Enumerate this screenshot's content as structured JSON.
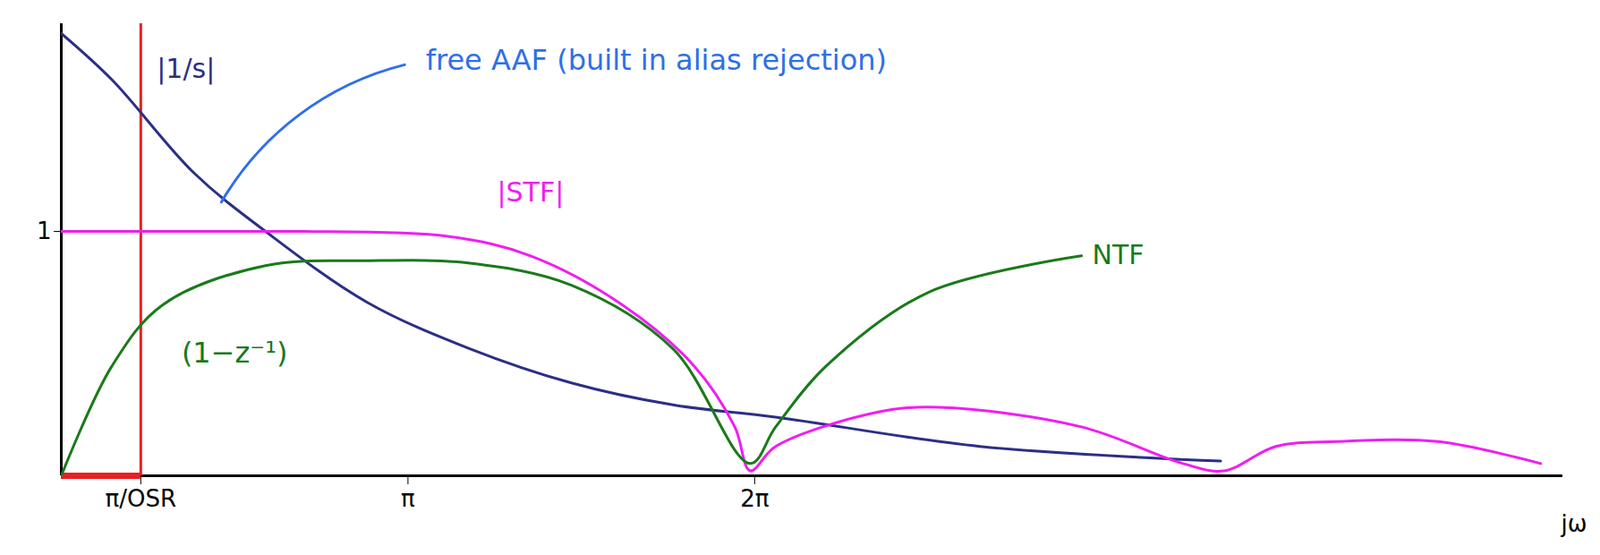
{
  "chart_data": {
    "type": "line",
    "xlabel": "jω",
    "xlim": [
      0,
      13.6
    ],
    "ylim": [
      0,
      1.85
    ],
    "xticks": [
      {
        "value": 0.72,
        "label": "π/OSR"
      },
      {
        "value": 3.14,
        "label": "π"
      },
      {
        "value": 6.28,
        "label": "2π"
      }
    ],
    "yticks": [
      1
    ],
    "grid": false,
    "series": [
      {
        "name": "|1/s|",
        "color": "#2b2f86",
        "line_style": "solid",
        "marker": "none",
        "x": [
          0.0,
          0.46,
          1.2,
          1.85,
          2.77,
          3.7,
          4.62,
          5.54,
          6.47,
          8.32,
          10.5
        ],
        "values": [
          1.81,
          1.62,
          1.24,
          1.0,
          0.71,
          0.52,
          0.38,
          0.29,
          0.24,
          0.12,
          0.06
        ]
      },
      {
        "name": "|STF|",
        "color": "#f01ef0",
        "line_style": "solid",
        "marker": "none",
        "x": [
          0.0,
          0.46,
          1.2,
          1.85,
          2.2,
          3.5,
          4.25,
          5.08,
          5.73,
          6.1,
          6.24,
          6.47,
          7.39,
          7.95,
          9.24,
          10.16,
          10.53,
          11.0,
          11.55,
          12.47,
          13.4
        ],
        "values": [
          1.0,
          1.0,
          1.0,
          1.0,
          1.0,
          0.98,
          0.9,
          0.7,
          0.45,
          0.2,
          0.02,
          0.12,
          0.26,
          0.28,
          0.2,
          0.05,
          0.02,
          0.12,
          0.14,
          0.14,
          0.05
        ]
      },
      {
        "name": "NTF",
        "color": "#1a7a1a",
        "line_style": "solid",
        "marker": "none",
        "x": [
          0.0,
          0.46,
          0.92,
          1.85,
          2.77,
          3.7,
          4.62,
          5.54,
          6.24,
          6.47,
          6.93,
          7.85,
          9.24
        ],
        "values": [
          0.0,
          0.45,
          0.7,
          0.86,
          0.88,
          0.87,
          0.78,
          0.52,
          0.05,
          0.2,
          0.45,
          0.75,
          0.9
        ]
      }
    ],
    "signal_band": {
      "range": [
        0,
        0.72
      ],
      "color": "#e82020"
    },
    "annotations": [
      {
        "text": "free AAF (built in alias rejection)",
        "x": 3.3,
        "y": 1.7,
        "color": "#2f6fe8",
        "arrow_to": [
          1.45,
          1.12
        ]
      },
      {
        "text": "(1−z⁻¹)",
        "x": 1.57,
        "y": 0.5,
        "color": "#1a7a1a"
      }
    ]
  }
}
